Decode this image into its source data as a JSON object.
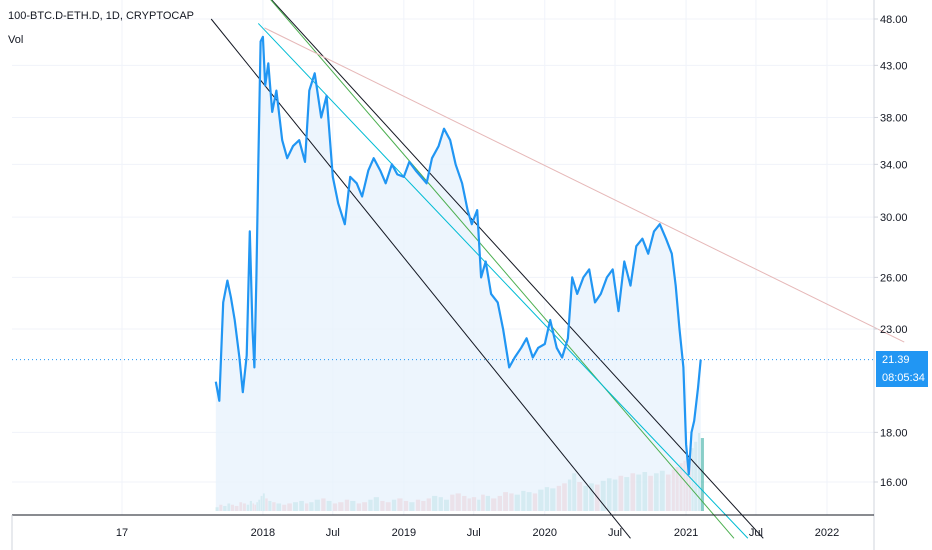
{
  "header": {
    "symbol_line": "100-BTC.D-ETH.D, 1D, CRYPTOCAP",
    "indicator": "Vol"
  },
  "last_price": {
    "value": "21.39",
    "countdown": "08:05:34"
  },
  "colors": {
    "price_line": "#2196f3",
    "area_fill": "#e8f2fd",
    "volume_up": "#26a69a",
    "volume_down": "#ef5350",
    "channel_black": "#131722",
    "channel_green": "#4caf50",
    "channel_cyan": "#00bcd4",
    "resistance": "#e6b8b8",
    "grid": "#f0f3fa"
  },
  "chart_data": {
    "type": "line",
    "x_ticks": [
      "17",
      "2018",
      "Jul",
      "2019",
      "Jul",
      "2020",
      "Jul",
      "2021",
      "Jul",
      "2022"
    ],
    "y_ticks": [
      "48.00",
      "43.00",
      "38.00",
      "34.00",
      "30.00",
      "26.00",
      "23.00",
      "18.00",
      "16.00"
    ],
    "y_scale": "log",
    "series": [
      {
        "x": [
          "2017-09-01",
          "2017-09-10",
          "2017-09-20",
          "2017-10-01",
          "2017-10-10",
          "2017-10-20",
          "2017-11-01",
          "2017-11-10",
          "2017-11-20",
          "2017-11-28",
          "2017-12-05",
          "2017-12-10",
          "2017-12-15",
          "2017-12-20",
          "2017-12-26",
          "2018-01-01",
          "2018-01-07",
          "2018-01-15",
          "2018-01-25",
          "2018-02-05",
          "2018-02-20",
          "2018-03-05",
          "2018-03-20",
          "2018-04-05",
          "2018-04-20",
          "2018-05-01",
          "2018-05-15",
          "2018-06-01",
          "2018-06-15",
          "2018-07-01",
          "2018-07-15",
          "2018-08-01",
          "2018-08-15",
          "2018-09-01",
          "2018-09-15",
          "2018-10-01",
          "2018-10-15",
          "2018-11-01",
          "2018-11-15",
          "2018-12-01",
          "2018-12-15",
          "2019-01-01",
          "2019-01-15",
          "2019-02-01",
          "2019-02-15",
          "2019-03-01",
          "2019-03-15",
          "2019-04-01",
          "2019-04-15",
          "2019-05-01",
          "2019-05-15",
          "2019-06-01",
          "2019-06-15",
          "2019-06-26",
          "2019-07-10",
          "2019-07-20",
          "2019-08-01",
          "2019-08-15",
          "2019-09-01",
          "2019-09-15",
          "2019-10-01",
          "2019-10-15",
          "2019-11-01",
          "2019-11-15",
          "2019-12-01",
          "2019-12-15",
          "2020-01-01",
          "2020-01-15",
          "2020-02-01",
          "2020-02-15",
          "2020-03-01",
          "2020-03-12",
          "2020-03-25",
          "2020-04-10",
          "2020-04-25",
          "2020-05-10",
          "2020-05-25",
          "2020-06-10",
          "2020-06-25",
          "2020-07-10",
          "2020-07-25",
          "2020-08-10",
          "2020-08-25",
          "2020-09-10",
          "2020-09-25",
          "2020-10-10",
          "2020-10-25",
          "2020-11-10",
          "2020-11-25",
          "2020-12-05",
          "2020-12-15",
          "2020-12-25",
          "2021-01-01",
          "2021-01-08",
          "2021-01-15",
          "2021-01-22",
          "2021-02-01",
          "2021-02-08"
        ],
        "y": [
          20.3,
          19.4,
          24.5,
          25.8,
          24.8,
          23.5,
          21.5,
          19.8,
          21.6,
          29.0,
          23.0,
          21.0,
          26.0,
          34.0,
          45.5,
          46.0,
          41.0,
          43.2,
          38.5,
          40.5,
          36.0,
          34.5,
          35.5,
          36.0,
          34.2,
          40.5,
          42.2,
          38.0,
          40.0,
          33.0,
          31.0,
          29.5,
          33.0,
          32.5,
          31.5,
          33.5,
          34.5,
          33.5,
          32.5,
          34.0,
          33.2,
          33.0,
          34.2,
          33.5,
          33.0,
          32.5,
          34.5,
          35.5,
          37.0,
          36.0,
          34.0,
          32.5,
          30.5,
          29.5,
          30.5,
          26.0,
          27.0,
          25.0,
          24.5,
          23.0,
          21.0,
          21.5,
          22.0,
          22.5,
          21.5,
          22.0,
          22.2,
          23.5,
          22.0,
          21.5,
          22.5,
          26.0,
          25.0,
          26.0,
          26.5,
          24.5,
          25.0,
          26.0,
          26.5,
          24.0,
          27.0,
          25.5,
          28.0,
          28.5,
          27.5,
          29.0,
          29.5,
          28.5,
          27.5,
          25.5,
          23.0,
          21.0,
          17.5,
          16.3,
          18.0,
          18.5,
          20.0,
          21.39
        ]
      }
    ],
    "volume": [
      3,
      5,
      4,
      6,
      5,
      4,
      7,
      6,
      5,
      8,
      6,
      5,
      7,
      9,
      12,
      14,
      10,
      8,
      7,
      6,
      5,
      6,
      7,
      8,
      6,
      7,
      9,
      10,
      8,
      6,
      7,
      9,
      8,
      6,
      7,
      9,
      11,
      8,
      7,
      9,
      10,
      8,
      7,
      9,
      8,
      10,
      12,
      11,
      9,
      13,
      14,
      12,
      10,
      11,
      9,
      13,
      12,
      10,
      12,
      15,
      14,
      13,
      16,
      15,
      14,
      17,
      19,
      18,
      20,
      22,
      25,
      30,
      23,
      20,
      22,
      21,
      24,
      26,
      25,
      28,
      27,
      30,
      29,
      31,
      28,
      30,
      32,
      29,
      33,
      35,
      38,
      40,
      42,
      45,
      50,
      55,
      62,
      58
    ],
    "trendlines": [
      {
        "name_key": "channel-upper-black",
        "from": [
          "2017-12-20",
          52.0
        ],
        "to": [
          "2021-07-20",
          14.0
        ]
      },
      {
        "name_key": "channel-lower-black",
        "from": [
          "2017-08-20",
          48.0
        ],
        "to": [
          "2020-08-10",
          14.0
        ]
      },
      {
        "name_key": "channel-green",
        "from": [
          "2017-12-20",
          52.0
        ],
        "to": [
          "2021-05-05",
          14.0
        ]
      },
      {
        "name_key": "channel-cyan",
        "from": [
          "2017-12-20",
          47.5
        ],
        "to": [
          "2021-06-10",
          14.0
        ]
      },
      {
        "name_key": "resistance-red",
        "from": [
          "2018-01-05",
          47.0
        ],
        "to": [
          "2022-07-20",
          22.3
        ]
      }
    ],
    "last_value_line": 21.39
  }
}
